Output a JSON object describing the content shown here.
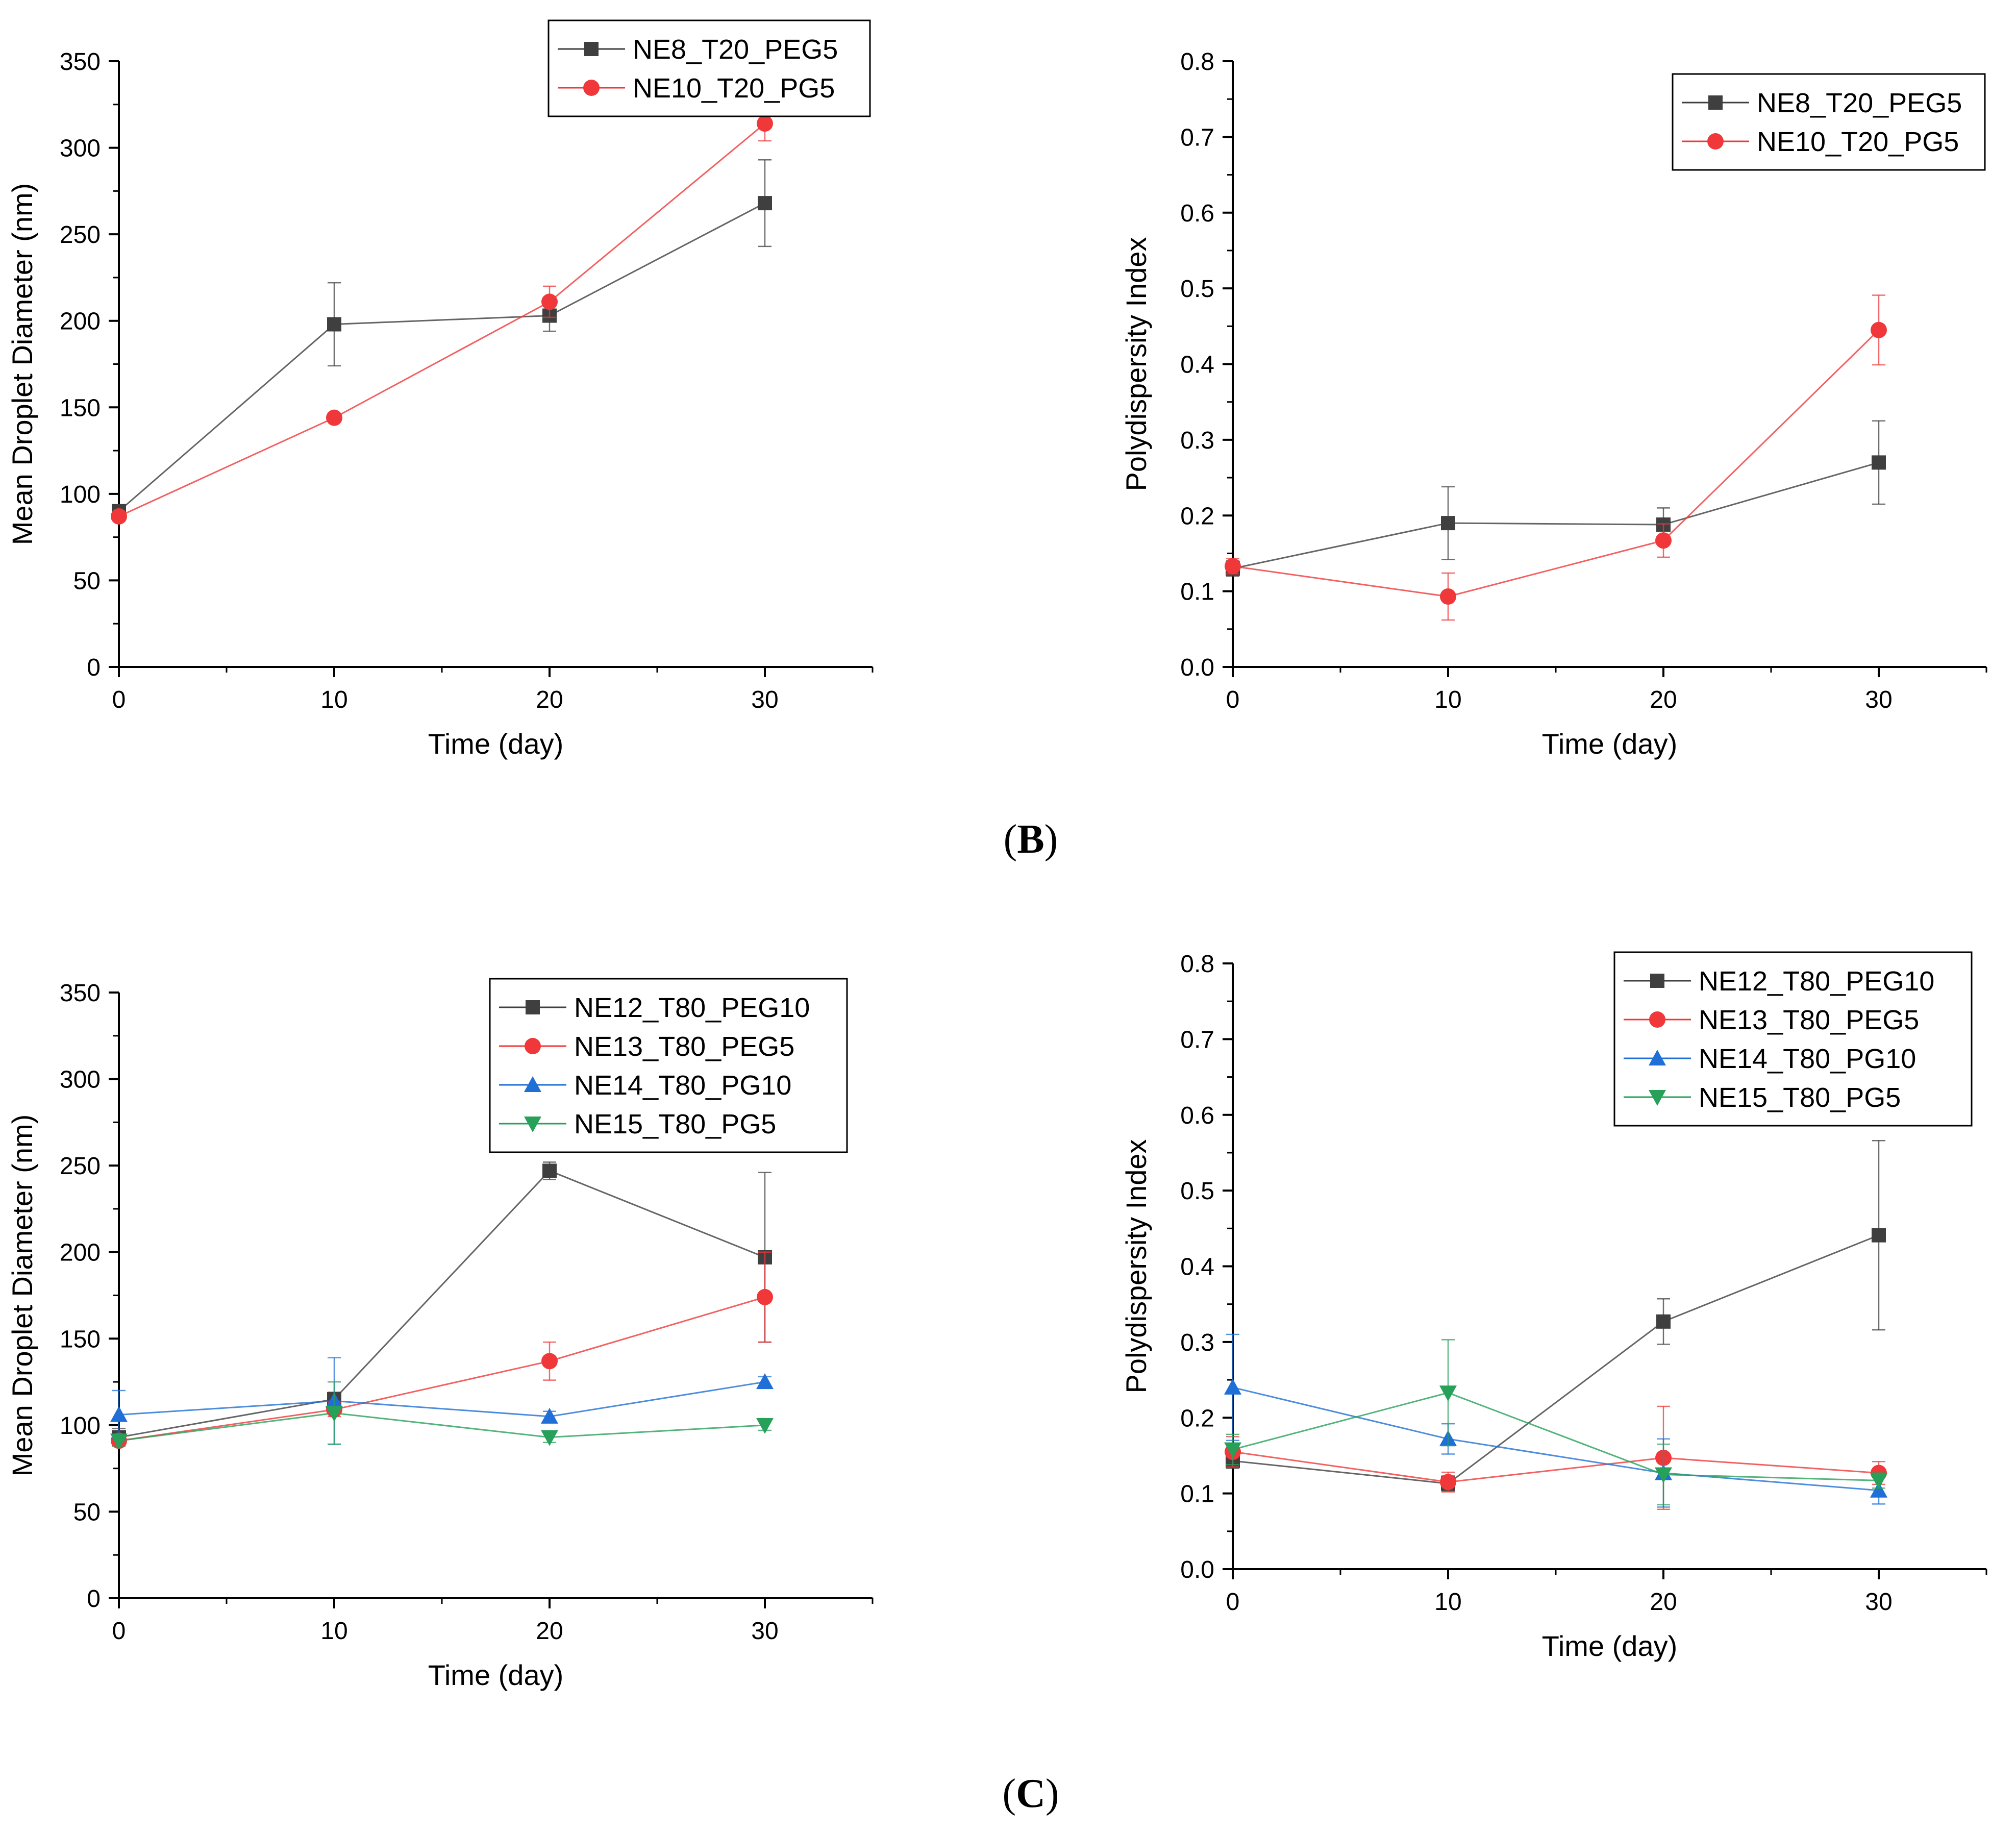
{
  "panel_labels": {
    "b": "B",
    "c": "C"
  },
  "colors": {
    "grey": "#3f3f3f",
    "red": "#f0383a",
    "blue": "#1f6fd6",
    "green": "#27a05a"
  },
  "chart_data": [
    {
      "id": "b-left",
      "type": "line",
      "title": "",
      "xlabel": "Time (day)",
      "ylabel": "Mean Droplet Diameter (nm)",
      "xlim": [
        0,
        35
      ],
      "ylim": [
        0,
        350
      ],
      "xticks": [
        0,
        10,
        20,
        30
      ],
      "yticks": [
        0,
        50,
        100,
        150,
        200,
        250,
        300,
        350
      ],
      "legend_position": "top-right",
      "x": [
        0,
        10,
        20,
        30
      ],
      "series": [
        {
          "name": "NE8_T20_PEG5",
          "color": "#3f3f3f",
          "marker": "square",
          "values": [
            90,
            198,
            203,
            268
          ],
          "errors": [
            0,
            24,
            9,
            25
          ]
        },
        {
          "name": "NE10_T20_PG5",
          "color": "#f0383a",
          "marker": "circle",
          "values": [
            87,
            144,
            211,
            314
          ],
          "errors": [
            0,
            0,
            9,
            10
          ]
        }
      ]
    },
    {
      "id": "b-right",
      "type": "line",
      "title": "",
      "xlabel": "Time (day)",
      "ylabel": "Polydispersity Index",
      "xlim": [
        0,
        35
      ],
      "ylim": [
        0,
        0.8
      ],
      "xticks": [
        0,
        10,
        20,
        30
      ],
      "yticks": [
        0.0,
        0.1,
        0.2,
        0.3,
        0.4,
        0.5,
        0.6,
        0.7,
        0.8
      ],
      "legend_position": "top-right",
      "x": [
        0,
        10,
        20,
        30
      ],
      "series": [
        {
          "name": "NE8_T20_PEG5",
          "color": "#3f3f3f",
          "marker": "square",
          "values": [
            0.13,
            0.19,
            0.188,
            0.27
          ],
          "errors": [
            0.01,
            0.048,
            0.022,
            0.055
          ]
        },
        {
          "name": "NE10_T20_PG5",
          "color": "#f0383a",
          "marker": "circle",
          "values": [
            0.133,
            0.093,
            0.167,
            0.445
          ],
          "errors": [
            0.01,
            0.031,
            0.022,
            0.046
          ]
        }
      ]
    },
    {
      "id": "c-left",
      "type": "line",
      "title": "",
      "xlabel": "Time (day)",
      "ylabel": "Mean Droplet Diameter (nm)",
      "xlim": [
        0,
        35
      ],
      "ylim": [
        0,
        350
      ],
      "xticks": [
        0,
        10,
        20,
        30
      ],
      "yticks": [
        0,
        50,
        100,
        150,
        200,
        250,
        300,
        350
      ],
      "legend_position": "top-right",
      "x": [
        0,
        10,
        20,
        30
      ],
      "series": [
        {
          "name": "NE12_T80_PEG10",
          "color": "#3f3f3f",
          "marker": "square",
          "values": [
            93,
            115,
            247,
            197
          ],
          "errors": [
            5,
            4,
            5,
            49
          ]
        },
        {
          "name": "NE13_T80_PEG5",
          "color": "#f0383a",
          "marker": "circle",
          "values": [
            91,
            109,
            137,
            174
          ],
          "errors": [
            3,
            4,
            11,
            26
          ]
        },
        {
          "name": "NE14_T80_PG10",
          "color": "#1f6fd6",
          "marker": "triangle-up",
          "values": [
            106,
            114,
            105,
            125
          ],
          "errors": [
            14,
            25,
            3,
            3
          ]
        },
        {
          "name": "NE15_T80_PG5",
          "color": "#27a05a",
          "marker": "triangle-down",
          "values": [
            91,
            107,
            93,
            100
          ],
          "errors": [
            3,
            18,
            3,
            3
          ]
        }
      ]
    },
    {
      "id": "c-right",
      "type": "line",
      "title": "",
      "xlabel": "Time (day)",
      "ylabel": "Polydispersity Index",
      "xlim": [
        0,
        35
      ],
      "ylim": [
        0,
        0.8
      ],
      "xticks": [
        0,
        10,
        20,
        30
      ],
      "yticks": [
        0.0,
        0.1,
        0.2,
        0.3,
        0.4,
        0.5,
        0.6,
        0.7,
        0.8
      ],
      "legend_position": "top-right",
      "x": [
        0,
        10,
        20,
        30
      ],
      "series": [
        {
          "name": "NE12_T80_PEG10",
          "color": "#3f3f3f",
          "marker": "square",
          "values": [
            0.143,
            0.113,
            0.327,
            0.441
          ],
          "errors": [
            0.01,
            0.01,
            0.03,
            0.125
          ]
        },
        {
          "name": "NE13_T80_PEG5",
          "color": "#f0383a",
          "marker": "circle",
          "values": [
            0.155,
            0.115,
            0.147,
            0.127
          ],
          "errors": [
            0.02,
            0.013,
            0.068,
            0.015
          ]
        },
        {
          "name": "NE14_T80_PG10",
          "color": "#1f6fd6",
          "marker": "triangle-up",
          "values": [
            0.24,
            0.172,
            0.127,
            0.104
          ],
          "errors": [
            0.07,
            0.02,
            0.045,
            0.018
          ]
        },
        {
          "name": "NE15_T80_PG5",
          "color": "#27a05a",
          "marker": "triangle-down",
          "values": [
            0.158,
            0.233,
            0.125,
            0.117
          ],
          "errors": [
            0.02,
            0.07,
            0.04,
            0.01
          ]
        }
      ]
    }
  ]
}
